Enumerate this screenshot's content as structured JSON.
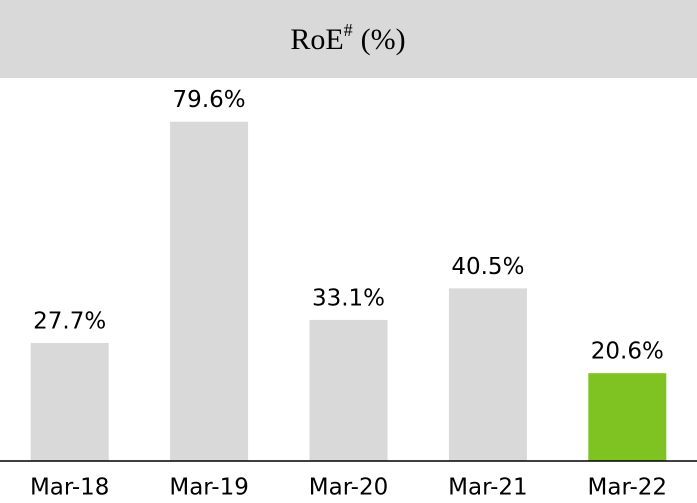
{
  "chart_data": {
    "type": "bar",
    "title": {
      "text": "RoE",
      "superscript": "#",
      "unit": "(%)"
    },
    "categories": [
      "Mar-18",
      "Mar-19",
      "Mar-20",
      "Mar-21",
      "Mar-22"
    ],
    "values": [
      27.7,
      79.6,
      33.1,
      40.5,
      20.6
    ],
    "value_labels": [
      "27.7%",
      "79.6%",
      "33.1%",
      "40.5%",
      "20.6%"
    ],
    "colors": [
      "#d9d9d9",
      "#d9d9d9",
      "#d9d9d9",
      "#d9d9d9",
      "#7ec322"
    ],
    "ylim": [
      0,
      80
    ]
  }
}
